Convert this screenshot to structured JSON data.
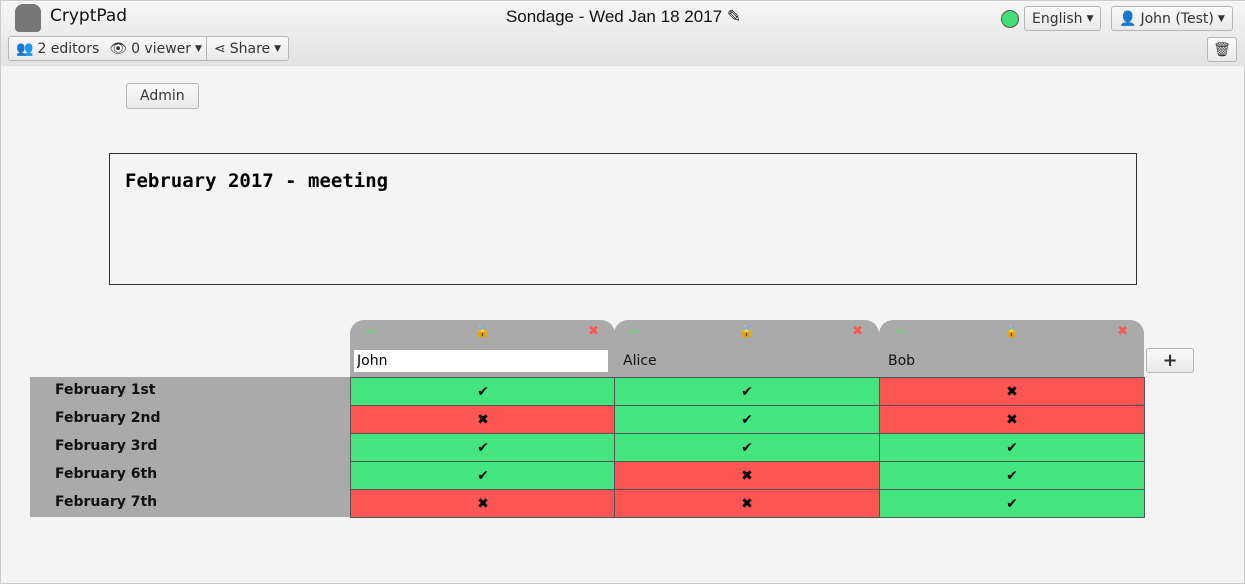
{
  "app": {
    "name": "CryptPad",
    "title": "Sondage - Wed Jan 18 2017"
  },
  "toolbar": {
    "editors": "2 editors",
    "viewers": "0 viewer",
    "share": "Share",
    "language": "English",
    "user": "John (Test)",
    "status_color": "#44dd77"
  },
  "admin_label": "Admin",
  "poll_title": "February 2017 - meeting",
  "colors": {
    "yes": "#44e57f",
    "no": "#fd5454"
  },
  "columns": [
    {
      "name": "John",
      "locked": false,
      "editing": true
    },
    {
      "name": "Alice",
      "locked": true
    },
    {
      "name": "Bob",
      "locked": true
    }
  ],
  "rows": [
    {
      "label": "February 1st",
      "values": [
        "yes",
        "yes",
        "no"
      ]
    },
    {
      "label": "February 2nd",
      "values": [
        "no",
        "yes",
        "no"
      ]
    },
    {
      "label": "February 3rd",
      "values": [
        "yes",
        "yes",
        "yes"
      ]
    },
    {
      "label": "February 6th",
      "values": [
        "yes",
        "no",
        "yes"
      ]
    },
    {
      "label": "February 7th",
      "values": [
        "no",
        "no",
        "yes"
      ]
    }
  ],
  "add_column_label": "+"
}
